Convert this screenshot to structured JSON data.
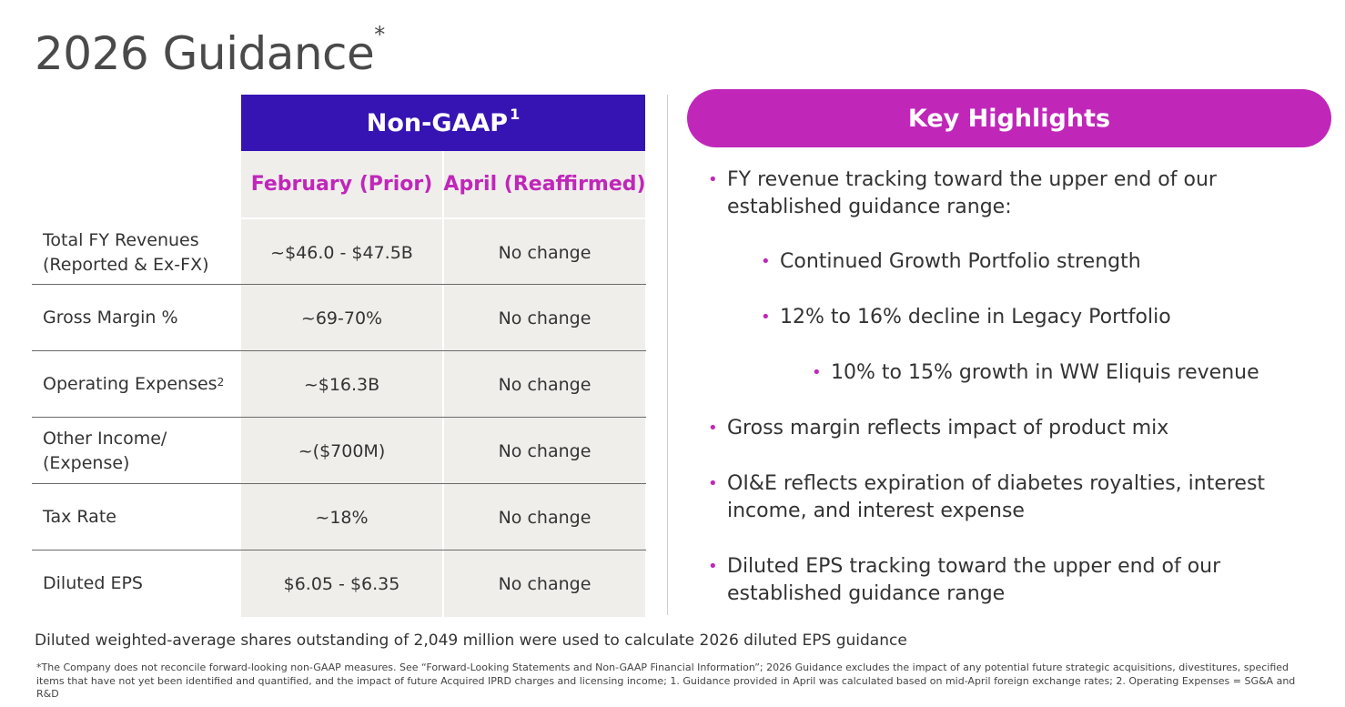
{
  "title": {
    "text": "2026 Guidance",
    "sup": "*"
  },
  "table": {
    "band_label": "Non-GAAP",
    "band_sup": "1",
    "col_headers": [
      "February (Prior)",
      "April (Reaffirmed)"
    ],
    "rows": [
      {
        "label_lines": [
          "Total FY Revenues",
          "(Reported & Ex-FX)"
        ],
        "sup": "",
        "prior": "~$46.0 - $47.5B",
        "reaffirmed": "No change"
      },
      {
        "label_lines": [
          "Gross Margin %"
        ],
        "sup": "",
        "prior": "~69-70%",
        "reaffirmed": "No change"
      },
      {
        "label_lines": [
          "Operating Expenses"
        ],
        "sup": "2",
        "prior": "~$16.3B",
        "reaffirmed": "No change"
      },
      {
        "label_lines": [
          "Other Income/",
          "(Expense)"
        ],
        "sup": "",
        "prior": "~($700M)",
        "reaffirmed": "No change"
      },
      {
        "label_lines": [
          "Tax Rate"
        ],
        "sup": "",
        "prior": "~18%",
        "reaffirmed": "No change"
      },
      {
        "label_lines": [
          "Diluted EPS"
        ],
        "sup": "",
        "prior": "$6.05 - $6.35",
        "reaffirmed": "No change"
      }
    ]
  },
  "highlights": {
    "title": "Key Highlights",
    "bullets": [
      {
        "level": 1,
        "lines": [
          "FY revenue tracking toward the upper end of our",
          "established guidance range:"
        ]
      },
      {
        "level": 2,
        "lines": [
          "Continued Growth Portfolio strength"
        ]
      },
      {
        "level": 2,
        "lines": [
          "12% to 16% decline in Legacy Portfolio"
        ]
      },
      {
        "level": 3,
        "lines": [
          "10% to 15% growth in WW Eliquis revenue"
        ]
      },
      {
        "level": 1,
        "lines": [
          "Gross margin reflects impact of product mix"
        ]
      },
      {
        "level": 1,
        "lines": [
          "OI&E reflects expiration of diabetes royalties, interest",
          "income, and interest expense"
        ]
      },
      {
        "level": 1,
        "lines": [
          "Diluted EPS tracking toward the upper end of our",
          "established guidance range"
        ]
      }
    ]
  },
  "shares_note": "Diluted weighted-average shares outstanding of 2,049 million were used to calculate 2026 diluted EPS guidance",
  "footnote": "*The Company does not reconcile forward-looking non-GAAP measures. See “Forward-Looking Statements and Non-GAAP Financial Information”; 2026 Guidance excludes the impact of any potential future strategic acquisitions, divestitures, specified items that have not yet been identified and quantified, and the impact of future Acquired IPRD charges and licensing income; 1. Guidance provided in April was calculated based on mid-April foreign exchange rates; 2. Operating Expenses = SG&A and R&D",
  "colors": {
    "band": "#3614b3",
    "accent": "#c027b9",
    "cell_bg": "#efeeeb"
  }
}
